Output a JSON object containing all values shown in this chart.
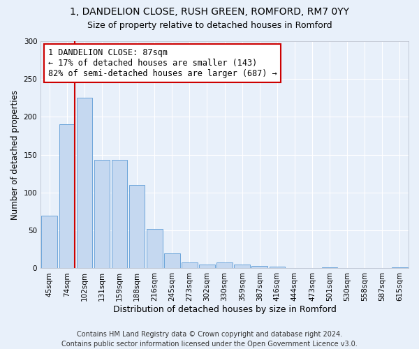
{
  "title": "1, DANDELION CLOSE, RUSH GREEN, ROMFORD, RM7 0YY",
  "subtitle": "Size of property relative to detached houses in Romford",
  "xlabel": "Distribution of detached houses by size in Romford",
  "ylabel": "Number of detached properties",
  "bar_values": [
    70,
    190,
    225,
    143,
    143,
    110,
    52,
    20,
    8,
    5,
    8,
    5,
    3,
    2,
    0,
    0,
    1,
    0,
    0,
    0,
    1
  ],
  "bar_labels": [
    "45sqm",
    "74sqm",
    "102sqm",
    "131sqm",
    "159sqm",
    "188sqm",
    "216sqm",
    "245sqm",
    "273sqm",
    "302sqm",
    "330sqm",
    "359sqm",
    "387sqm",
    "416sqm",
    "444sqm",
    "473sqm",
    "501sqm",
    "530sqm",
    "558sqm",
    "587sqm",
    "615sqm"
  ],
  "bar_color": "#c5d8f0",
  "bar_edgecolor": "#5b9bd5",
  "background_color": "#e8f0fa",
  "grid_color": "#ffffff",
  "vline_color": "#cc0000",
  "annotation_line1": "1 DANDELION CLOSE: 87sqm",
  "annotation_line2": "← 17% of detached houses are smaller (143)",
  "annotation_line3": "82% of semi-detached houses are larger (687) →",
  "annotation_box_color": "#cc0000",
  "ylim": [
    0,
    300
  ],
  "yticks": [
    0,
    50,
    100,
    150,
    200,
    250,
    300
  ],
  "footnote": "Contains HM Land Registry data © Crown copyright and database right 2024.\nContains public sector information licensed under the Open Government Licence v3.0.",
  "title_fontsize": 10,
  "subtitle_fontsize": 9,
  "xlabel_fontsize": 9,
  "ylabel_fontsize": 8.5,
  "tick_fontsize": 7.5,
  "annotation_fontsize": 8.5,
  "footnote_fontsize": 7
}
